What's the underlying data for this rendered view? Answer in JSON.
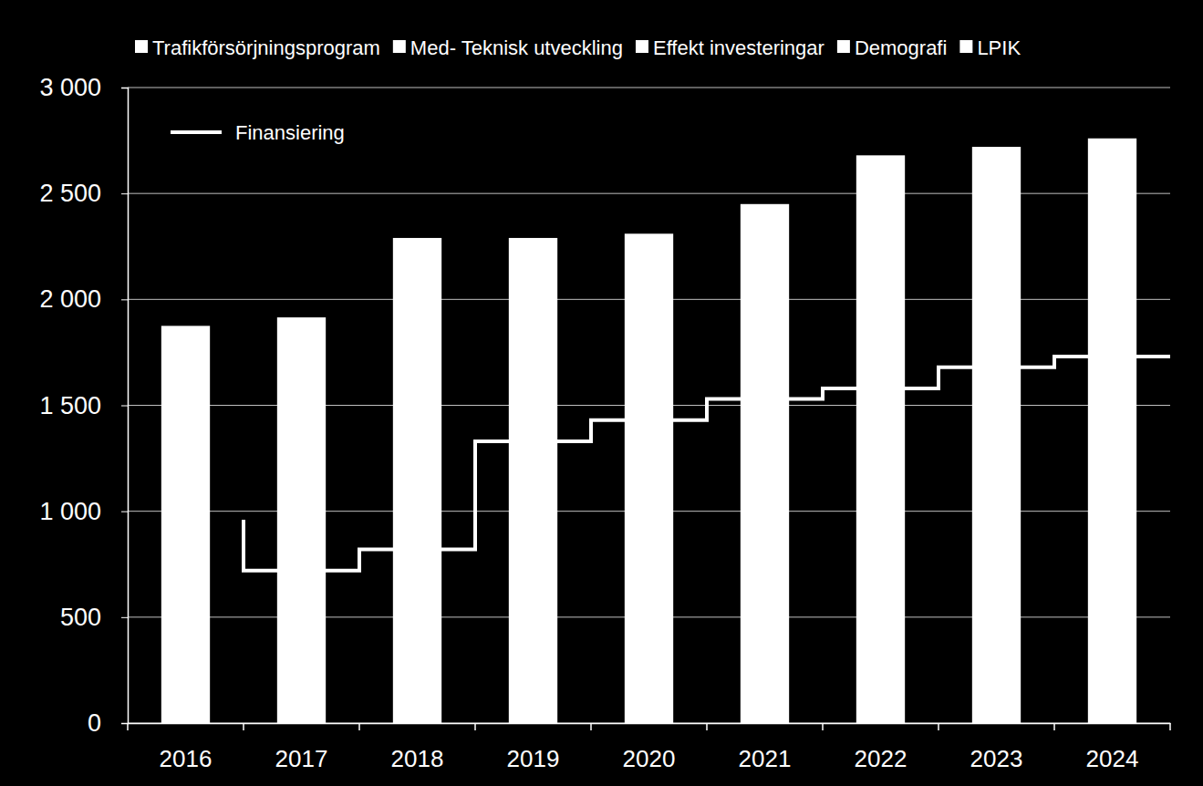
{
  "chart_data": {
    "type": "bar",
    "stacked": true,
    "grid": true,
    "legend": "top",
    "categories": [
      "2016",
      "2017",
      "2018",
      "2019",
      "2020",
      "2021",
      "2022",
      "2023",
      "2024"
    ],
    "ylim": [
      0,
      3000
    ],
    "yticks": [
      0,
      500,
      {
        "value": 1000,
        "label": "1 000"
      },
      {
        "value": 1500,
        "label": "1 500"
      },
      {
        "value": 2000,
        "label": "2 000"
      },
      {
        "value": 2500,
        "label": "2 500"
      },
      {
        "value": 3000,
        "label": "3 000"
      }
    ],
    "series": [
      {
        "name": "Trafikförsörjningsprogram",
        "color": "#ffffff",
        "values": [
          1875,
          1915,
          2290,
          2290,
          2310,
          2450,
          2680,
          2720,
          2760
        ]
      },
      {
        "name": "Med- Teknisk utveckling",
        "color": "#ffffff",
        "values": [
          null,
          null,
          null,
          null,
          null,
          null,
          null,
          null,
          null
        ]
      },
      {
        "name": "Effekt investeringar",
        "color": "#ffffff",
        "values": [
          null,
          null,
          null,
          null,
          null,
          null,
          null,
          null,
          null
        ]
      },
      {
        "name": "Demografi",
        "color": "#ffffff",
        "values": [
          null,
          null,
          null,
          null,
          null,
          null,
          null,
          null,
          null
        ]
      },
      {
        "name": "LPIK",
        "color": "#ffffff",
        "values": [
          null,
          null,
          null,
          null,
          null,
          null,
          null,
          null,
          null
        ]
      },
      {
        "name": "Finansiering",
        "type": "line",
        "line_style": "step",
        "color": "#ffffff",
        "values": [
          960,
          720,
          820,
          1330,
          1430,
          1530,
          1580,
          1680,
          1730
        ]
      }
    ]
  }
}
